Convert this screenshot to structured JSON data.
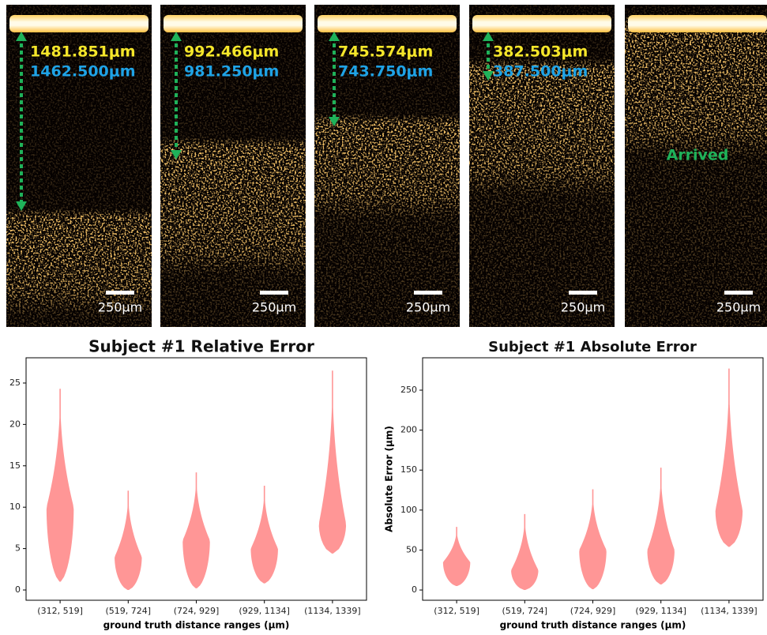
{
  "panels": [
    {
      "measured": "1481.851μm",
      "truth": "1462.500μm",
      "scale": "250μm"
    },
    {
      "measured": "992.466μm",
      "truth": "981.250μm",
      "scale": "250μm"
    },
    {
      "measured": "745.574μm",
      "truth": "743.750μm",
      "scale": "250μm"
    },
    {
      "measured": "382.503μm",
      "truth": "387.500μm",
      "scale": "250μm"
    },
    {
      "status": "Arrived",
      "scale": "250μm"
    }
  ],
  "chart_data": [
    {
      "type": "violin",
      "title": "Subject #1 Relative Error",
      "xlabel": "ground truth distance ranges (μm)",
      "categories": [
        "(312, 519]",
        "(519, 724]",
        "(724, 929]",
        "(929, 1134]",
        "(1134, 1339]"
      ],
      "color": "#ff9090",
      "ylim": [
        -1.24,
        28.05
      ],
      "yticks": [
        0,
        5,
        10,
        15,
        20,
        25
      ],
      "violins": [
        {
          "min": 1,
          "mode": 10,
          "max": 24.3
        },
        {
          "min": 0,
          "mode": 4,
          "max": 12
        },
        {
          "min": 0.2,
          "mode": 6,
          "max": 14.2
        },
        {
          "min": 0.8,
          "mode": 5,
          "max": 12.6
        },
        {
          "min": 4.4,
          "mode": 8,
          "max": 26.5
        }
      ]
    },
    {
      "type": "violin",
      "title": "Subject #1 Absolute Error",
      "xlabel": "ground truth distance ranges (μm)",
      "ylabel": "Absolute Error (μm)",
      "categories": [
        "(312, 519]",
        "(519, 724]",
        "(724, 929]",
        "(929, 1134]",
        "(1134, 1339]"
      ],
      "color": "#ff9090",
      "ylim": [
        -12.8,
        290.5
      ],
      "yticks": [
        0,
        50,
        100,
        150,
        200,
        250
      ],
      "violins": [
        {
          "min": 5,
          "mode": 35,
          "max": 79
        },
        {
          "min": 0,
          "mode": 25,
          "max": 95
        },
        {
          "min": 1,
          "mode": 50,
          "max": 126
        },
        {
          "min": 7,
          "mode": 50,
          "max": 153
        },
        {
          "min": 54,
          "mode": 100,
          "max": 277
        }
      ]
    }
  ]
}
